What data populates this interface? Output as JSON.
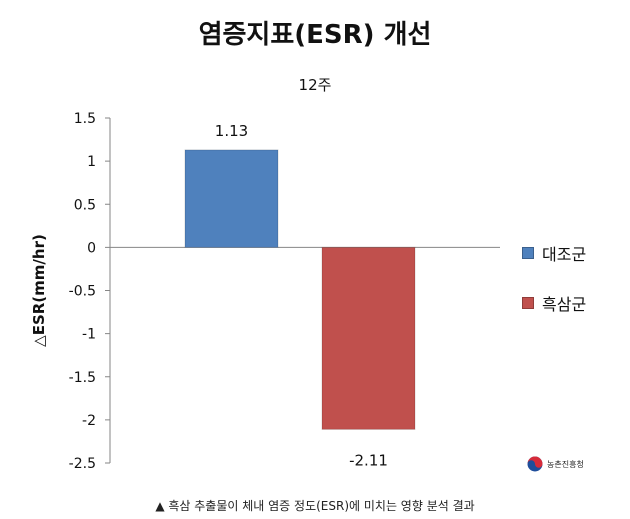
{
  "title": "염증지표(ESR) 개선",
  "caption": "▲ 흑삼 추출물이 체내 염증 정도(ESR)에 미치는 영향 분석 결과",
  "logo_text": "농촌진흥청",
  "colors": {
    "blue": "#4F81BD",
    "red": "#C0504D",
    "axis": "#868686"
  },
  "chart_data": {
    "type": "bar",
    "subtitle": "12주",
    "ylabel": "△ESR(mm/hr)",
    "xlabel": "",
    "ylim": [
      -2.5,
      1.5
    ],
    "yticks": [
      "1.5",
      "1",
      "0.5",
      "0",
      "-0.5",
      "-1",
      "-1.5",
      "-2",
      "-2.5"
    ],
    "grid": false,
    "legend_position": "right",
    "series": [
      {
        "name": "대조군",
        "value": 1.13,
        "label": "1.13",
        "color": "#4F81BD"
      },
      {
        "name": "흑삼군",
        "value": -2.11,
        "label": "-2.11",
        "color": "#C0504D"
      }
    ]
  }
}
